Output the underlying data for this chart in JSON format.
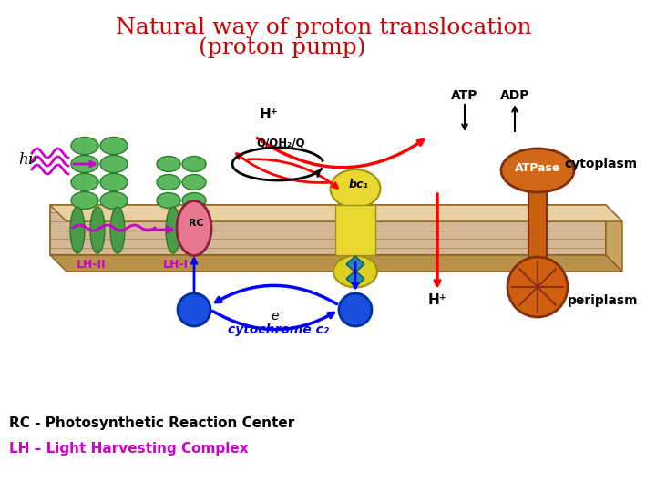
{
  "title_line1": "Natural way of proton translocation",
  "title_line2": "(proton pump)",
  "title_color": "#cc0000",
  "title_fontsize": 18,
  "bg_color": "#ffffff",
  "lh2_label": "LH-II",
  "lh1_label": "LH-I",
  "rc_label": "RC",
  "bc1_label": "bc₁",
  "atpase_label": "ATPase",
  "cytoplasm_label": "cytoplasm",
  "periplasm_label": "periplasm",
  "hv_label": "hν",
  "hplus_top": "H⁺",
  "hplus_bottom": "H⁺",
  "atp_label": "ATP",
  "adp_label": "ADP",
  "q_label": "Q/QH₂/Q",
  "eminus_label": "e⁻",
  "cytc2_label": "cytochrome c₂",
  "rc_note": "RC - Photosynthetic Reaction Center",
  "lh_note": "LH – Light Harvesting Complex",
  "lh_note_color": "#cc00cc",
  "rc_note_color": "#000000"
}
